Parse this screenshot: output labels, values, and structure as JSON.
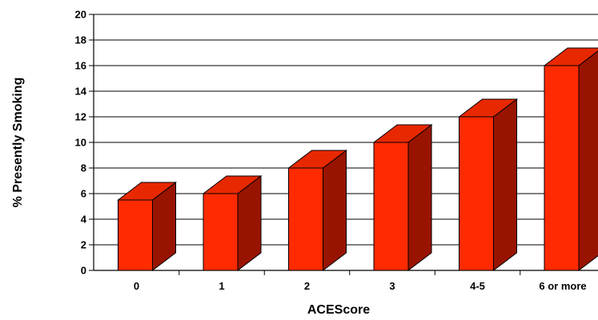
{
  "chart_data": {
    "type": "bar",
    "style": "3d",
    "title": "",
    "xlabel": "ACEScore",
    "ylabel": "% Presently Smoking",
    "categories": [
      "0",
      "1",
      "2",
      "3",
      "4-5",
      "6 or more"
    ],
    "values": [
      5.5,
      6,
      8,
      10,
      12,
      16
    ],
    "ylim": [
      0,
      20
    ],
    "yticks": [
      "0",
      "2",
      "4",
      "6",
      "8",
      "10",
      "12",
      "14",
      "16",
      "18",
      "20"
    ],
    "grid": true,
    "legend": "none",
    "colors": {
      "bar_front": "#ff2a00",
      "bar_top": "#e82800",
      "bar_side": "#991400",
      "bar_stroke": "#000000",
      "grid": "#000000"
    }
  }
}
